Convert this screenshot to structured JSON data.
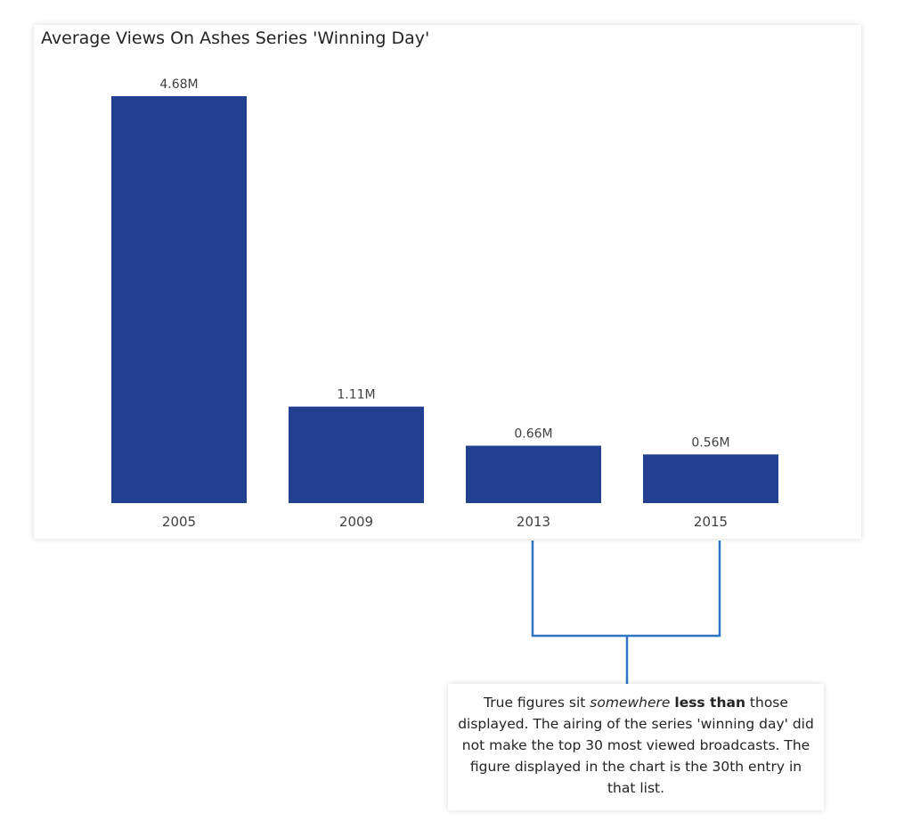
{
  "chart_data": {
    "type": "bar",
    "title": "Average Views On Ashes Series 'Winning Day'",
    "categories": [
      "2005",
      "2009",
      "2013",
      "2015"
    ],
    "values": [
      4.68,
      1.11,
      0.66,
      0.56
    ],
    "data_labels": [
      "4.68M",
      "1.11M",
      "0.66M",
      "0.56M"
    ],
    "unit": "M",
    "xlabel": "",
    "ylabel": "",
    "ylim": [
      0,
      4.68
    ],
    "grid": false,
    "bar_color": "#233F8F"
  },
  "annotation": {
    "text_part1": "True figures sit ",
    "text_emphasis": "somewhere",
    "text_space": " ",
    "text_strong": "less than",
    "text_part2": " those displayed. The airing of the series 'winning day' did not make the top 30 most viewed broadcasts. The figure displayed in the chart is the 30th entry in that list.",
    "line_color": "#2E74C0"
  }
}
